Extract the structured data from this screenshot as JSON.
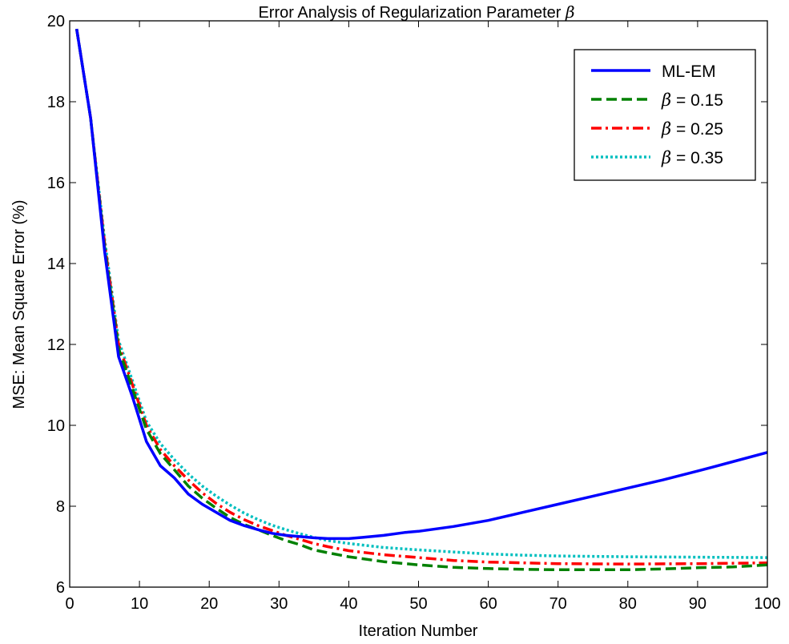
{
  "chart_data": {
    "type": "line",
    "title_prefix": "Error Analysis of Regularization Parameter ",
    "title_symbol": "β",
    "xlabel": "Iteration Number",
    "ylabel": "MSE: Mean Square Error (%)",
    "xlim": [
      0,
      100
    ],
    "ylim": [
      6,
      20
    ],
    "xticks": [
      0,
      10,
      20,
      30,
      40,
      50,
      60,
      70,
      80,
      90,
      100
    ],
    "yticks": [
      6,
      8,
      10,
      12,
      14,
      16,
      18,
      20
    ],
    "grid": false,
    "legend_position": "top-right",
    "series": [
      {
        "label_symbol": "",
        "label_text": "ML-EM",
        "color": "#0000ff",
        "dash": "solid",
        "points": [
          [
            1,
            19.8
          ],
          [
            3,
            17.6
          ],
          [
            5,
            14.3
          ],
          [
            7,
            11.7
          ],
          [
            9,
            10.7
          ],
          [
            11,
            9.6
          ],
          [
            13,
            9.0
          ],
          [
            15,
            8.7
          ],
          [
            17,
            8.3
          ],
          [
            19,
            8.05
          ],
          [
            21,
            7.85
          ],
          [
            23,
            7.65
          ],
          [
            25,
            7.52
          ],
          [
            27,
            7.42
          ],
          [
            29,
            7.33
          ],
          [
            31,
            7.28
          ],
          [
            33,
            7.25
          ],
          [
            35,
            7.22
          ],
          [
            37,
            7.2
          ],
          [
            40,
            7.2
          ],
          [
            42,
            7.23
          ],
          [
            45,
            7.28
          ],
          [
            48,
            7.35
          ],
          [
            50,
            7.38
          ],
          [
            55,
            7.5
          ],
          [
            60,
            7.65
          ],
          [
            65,
            7.85
          ],
          [
            70,
            8.05
          ],
          [
            75,
            8.25
          ],
          [
            80,
            8.45
          ],
          [
            85,
            8.65
          ],
          [
            90,
            8.87
          ],
          [
            95,
            9.1
          ],
          [
            100,
            9.33
          ]
        ]
      },
      {
        "label_symbol": "β",
        "label_text": " = 0.15",
        "color": "#008000",
        "dash": "dashed",
        "points": [
          [
            1,
            19.8
          ],
          [
            3,
            17.6
          ],
          [
            5,
            14.4
          ],
          [
            7,
            11.9
          ],
          [
            9,
            10.9
          ],
          [
            11,
            9.9
          ],
          [
            13,
            9.3
          ],
          [
            15,
            8.9
          ],
          [
            17,
            8.5
          ],
          [
            19,
            8.2
          ],
          [
            21,
            7.95
          ],
          [
            23,
            7.72
          ],
          [
            25,
            7.55
          ],
          [
            27,
            7.42
          ],
          [
            29,
            7.28
          ],
          [
            31,
            7.15
          ],
          [
            33,
            7.05
          ],
          [
            35,
            6.92
          ],
          [
            37,
            6.85
          ],
          [
            40,
            6.75
          ],
          [
            45,
            6.63
          ],
          [
            50,
            6.55
          ],
          [
            55,
            6.49
          ],
          [
            60,
            6.46
          ],
          [
            65,
            6.44
          ],
          [
            70,
            6.43
          ],
          [
            80,
            6.43
          ],
          [
            85,
            6.45
          ],
          [
            90,
            6.48
          ],
          [
            95,
            6.5
          ],
          [
            100,
            6.55
          ]
        ]
      },
      {
        "label_symbol": "β",
        "label_text": " = 0.25",
        "color": "#ff0000",
        "dash": "dashdot",
        "points": [
          [
            1,
            19.8
          ],
          [
            3,
            17.6
          ],
          [
            5,
            14.5
          ],
          [
            7,
            12.0
          ],
          [
            9,
            11.0
          ],
          [
            11,
            10.0
          ],
          [
            13,
            9.4
          ],
          [
            15,
            9.0
          ],
          [
            17,
            8.65
          ],
          [
            19,
            8.33
          ],
          [
            21,
            8.07
          ],
          [
            23,
            7.85
          ],
          [
            25,
            7.67
          ],
          [
            27,
            7.52
          ],
          [
            29,
            7.4
          ],
          [
            31,
            7.28
          ],
          [
            33,
            7.18
          ],
          [
            35,
            7.08
          ],
          [
            37,
            7.0
          ],
          [
            40,
            6.9
          ],
          [
            45,
            6.8
          ],
          [
            50,
            6.73
          ],
          [
            55,
            6.66
          ],
          [
            60,
            6.62
          ],
          [
            65,
            6.6
          ],
          [
            70,
            6.58
          ],
          [
            80,
            6.57
          ],
          [
            90,
            6.58
          ],
          [
            100,
            6.6
          ]
        ]
      },
      {
        "label_symbol": "β",
        "label_text": " = 0.35",
        "color": "#00bfbf",
        "dash": "dotted",
        "points": [
          [
            1,
            19.8
          ],
          [
            3,
            17.6
          ],
          [
            5,
            14.6
          ],
          [
            7,
            12.1
          ],
          [
            9,
            11.1
          ],
          [
            11,
            10.1
          ],
          [
            13,
            9.55
          ],
          [
            15,
            9.15
          ],
          [
            17,
            8.8
          ],
          [
            19,
            8.5
          ],
          [
            21,
            8.25
          ],
          [
            23,
            8.03
          ],
          [
            25,
            7.83
          ],
          [
            27,
            7.67
          ],
          [
            29,
            7.53
          ],
          [
            31,
            7.42
          ],
          [
            33,
            7.32
          ],
          [
            35,
            7.23
          ],
          [
            37,
            7.15
          ],
          [
            40,
            7.08
          ],
          [
            45,
            6.98
          ],
          [
            50,
            6.92
          ],
          [
            55,
            6.87
          ],
          [
            60,
            6.82
          ],
          [
            65,
            6.79
          ],
          [
            70,
            6.77
          ],
          [
            80,
            6.75
          ],
          [
            90,
            6.74
          ],
          [
            100,
            6.73
          ]
        ]
      }
    ]
  }
}
